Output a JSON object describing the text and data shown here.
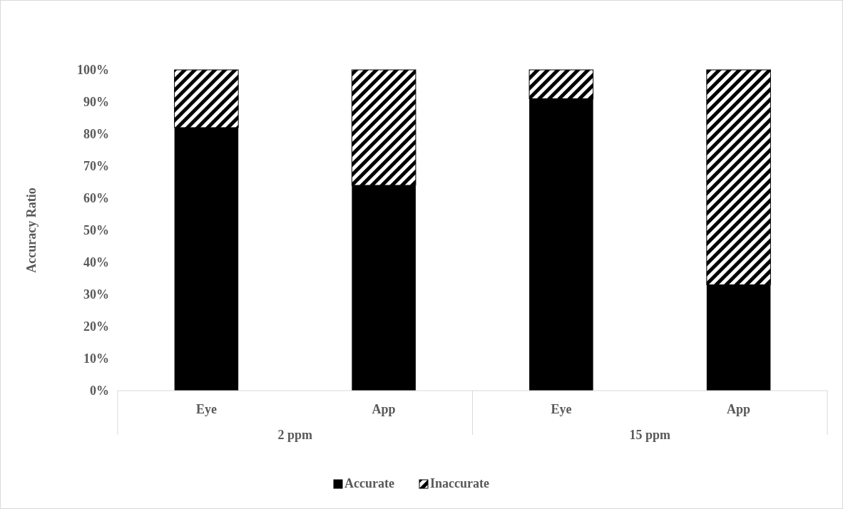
{
  "chart_data": {
    "type": "bar",
    "stacked": true,
    "ylabel": "Accuracy Ratio",
    "categories": [
      "Eye",
      "App",
      "Eye",
      "App"
    ],
    "annotations": [
      "2 ppm",
      "15 ppm"
    ],
    "series": [
      {
        "name": "Accurate",
        "color": "#000000",
        "values": [
          82,
          64,
          91,
          33
        ]
      },
      {
        "name": "Inaccurate",
        "color": "#000000",
        "values": [
          18,
          36,
          9,
          67
        ]
      }
    ],
    "ylim": [
      0,
      100
    ],
    "yticks": [
      {
        "value": 0,
        "label": "0%"
      },
      {
        "value": 10,
        "label": "10%"
      },
      {
        "value": 20,
        "label": "20%"
      },
      {
        "value": 30,
        "label": "30%"
      },
      {
        "value": 40,
        "label": "40%"
      },
      {
        "value": 50,
        "label": "50%"
      },
      {
        "value": 60,
        "label": "60%"
      },
      {
        "value": 70,
        "label": "70%"
      },
      {
        "value": 80,
        "label": "80%"
      },
      {
        "value": 90,
        "label": "90%"
      },
      {
        "value": 100,
        "label": "100%"
      }
    ],
    "legend": "bottom"
  }
}
